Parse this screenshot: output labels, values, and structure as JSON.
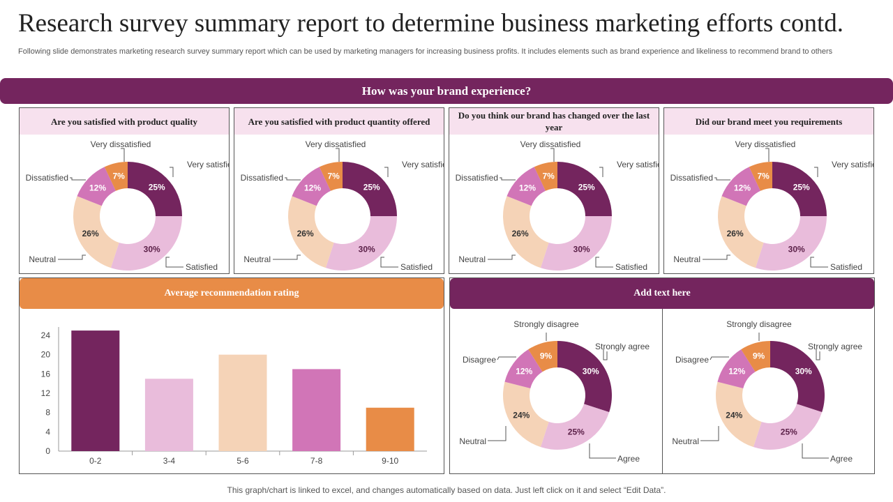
{
  "header": {
    "title": "Research survey summary report to determine business marketing efforts contd.",
    "subtitle": "Following slide demonstrates marketing research survey summary report which can be used by marketing managers for increasing business profits. It includes elements such as brand experience and likeliness to recommend brand to others",
    "banner": "How was your brand experience?"
  },
  "colors": {
    "plum": "#74255e",
    "light_pink": "#e9bcdb",
    "peach": "#f5d3b7",
    "orchid": "#d175b7",
    "orange": "#e88c47"
  },
  "footer": "This graph/chart is linked to excel, and changes automatically based on data. Just left click on it and select “Edit Data”.",
  "bar_section": {
    "title": "Average recommendation rating"
  },
  "right_section": {
    "title": "Add text here"
  },
  "chart_data": [
    {
      "type": "pie",
      "title": "Are you satisfied with product quality",
      "categories": [
        "Very satisfied",
        "Satisfied",
        "Neutral",
        "Dissatisfied",
        "Very dissatisfied"
      ],
      "values": [
        25,
        30,
        26,
        12,
        7
      ],
      "value_labels": [
        "25%",
        "30%",
        "26%",
        "12%",
        "7%"
      ]
    },
    {
      "type": "pie",
      "title": "Are you satisfied with product quantity offered",
      "categories": [
        "Very satisfied",
        "Satisfied",
        "Neutral",
        "Dissatisfied",
        "Very dissatisfied"
      ],
      "values": [
        25,
        30,
        26,
        12,
        7
      ],
      "value_labels": [
        "25%",
        "30%",
        "26%",
        "12%",
        "7%"
      ]
    },
    {
      "type": "pie",
      "title": "Do you think our brand has changed over the last year",
      "categories": [
        "Very satisfied",
        "Satisfied",
        "Neutral",
        "Dissatisfied",
        "Very dissatisfied"
      ],
      "values": [
        25,
        30,
        26,
        12,
        7
      ],
      "value_labels": [
        "25%",
        "30%",
        "26%",
        "12%",
        "7%"
      ]
    },
    {
      "type": "pie",
      "title": "Did our brand meet you requirements",
      "categories": [
        "Very satisfied",
        "Satisfied",
        "Neutral",
        "Dissatisfied",
        "Very dissatisfied"
      ],
      "values": [
        25,
        30,
        26,
        12,
        7
      ],
      "value_labels": [
        "25%",
        "30%",
        "26%",
        "12%",
        "7%"
      ]
    },
    {
      "type": "bar",
      "title": "Average recommendation rating",
      "categories": [
        "0-2",
        "3-4",
        "5-6",
        "7-8",
        "9-10"
      ],
      "values": [
        25,
        15,
        20,
        17,
        9
      ],
      "ylim": [
        0,
        24
      ],
      "yticks": [
        "0",
        "4",
        "8",
        "12",
        "16",
        "20",
        "24"
      ]
    },
    {
      "type": "pie",
      "title": "",
      "categories": [
        "Strongly agree",
        "Agree",
        "Neutral",
        "Disagree",
        "Strongly disagree"
      ],
      "values": [
        30,
        25,
        24,
        12,
        9
      ],
      "value_labels": [
        "30%",
        "25%",
        "24%",
        "12%",
        "9%"
      ]
    },
    {
      "type": "pie",
      "title": "",
      "categories": [
        "Strongly agree",
        "Agree",
        "Neutral",
        "Disagree",
        "Strongly disagree"
      ],
      "values": [
        30,
        25,
        24,
        12,
        9
      ],
      "value_labels": [
        "30%",
        "25%",
        "24%",
        "12%",
        "9%"
      ]
    }
  ]
}
